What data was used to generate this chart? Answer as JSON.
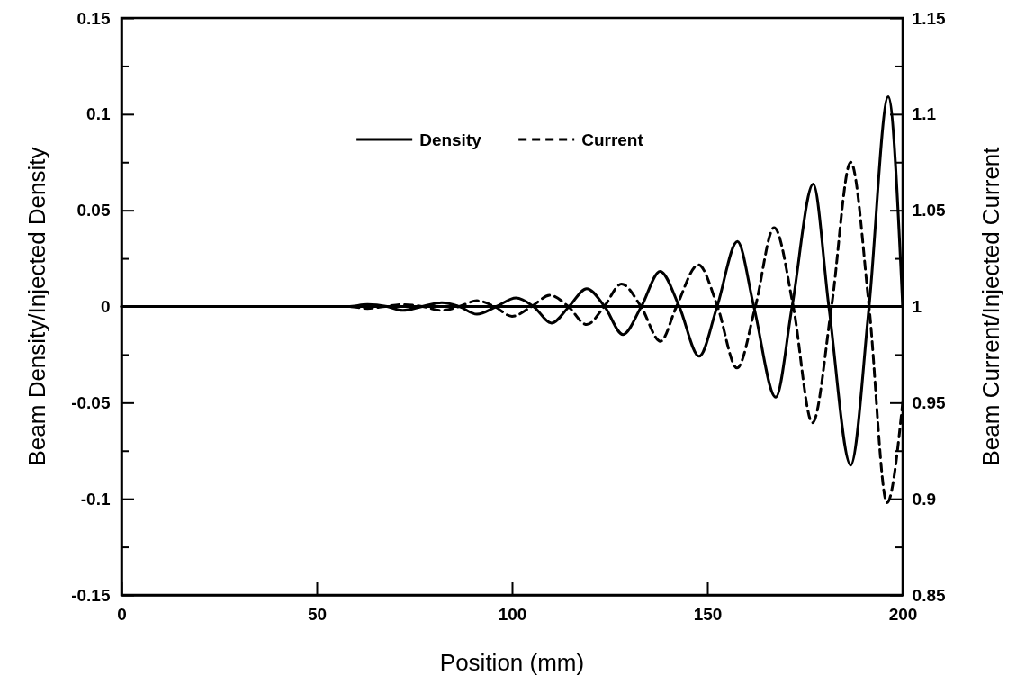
{
  "chart_data": {
    "type": "line",
    "xlabel": "Position (mm)",
    "ylabel": "Beam Density/Injected Density",
    "y2label": "Beam Current/Injected Current",
    "xlim": [
      0,
      200
    ],
    "xticks": [
      0,
      50,
      100,
      150,
      200
    ],
    "ylim": [
      -0.15,
      0.15
    ],
    "yticks": [
      -0.15,
      {
        "value": -0.125,
        "label": null
      },
      -0.1,
      {
        "value": -0.075,
        "label": null
      },
      -0.05,
      {
        "value": -0.025,
        "label": null
      },
      0,
      {
        "value": 0.025,
        "label": null
      },
      0.05,
      {
        "value": 0.075,
        "label": null
      },
      0.1,
      {
        "value": 0.125,
        "label": null
      },
      0.15
    ],
    "y2lim": [
      0.85,
      1.15
    ],
    "y2ticks": [
      0.85,
      {
        "value": 0.875,
        "label": null
      },
      0.9,
      {
        "value": 0.925,
        "label": null
      },
      0.95,
      {
        "value": 0.975,
        "label": null
      },
      1,
      {
        "value": 1.025,
        "label": null
      },
      1.05,
      {
        "value": 1.075,
        "label": null
      },
      1.1,
      {
        "value": 1.125,
        "label": null
      },
      1.15
    ],
    "grid": false,
    "legend": "top",
    "marker": "none",
    "ref_lines": [
      {
        "axis": "y",
        "value": 0,
        "color": "#000000",
        "line_style": "solid"
      }
    ],
    "series": [
      {
        "name": "Density",
        "color": "#000000",
        "line_style": "solid",
        "x": [
          0,
          50,
          58,
          63,
          68,
          72,
          77,
          82,
          86.5,
          91,
          96,
          101,
          105.5,
          110.1,
          114.6,
          119.1,
          123.7,
          128.4,
          133.1,
          137.9,
          142.8,
          147.9,
          152.5,
          157.7,
          161.9,
          167.5,
          171.7,
          177.1,
          181.1,
          186.7,
          191.4,
          196.3,
          200
        ],
        "values": [
          0,
          0,
          0,
          0.001,
          0,
          -0.002,
          0,
          0.002,
          0,
          -0.004,
          0,
          0.0044,
          0,
          -0.0086,
          0,
          0.0093,
          0,
          -0.0146,
          0,
          0.0183,
          0,
          -0.0259,
          0,
          0.0338,
          0,
          -0.0472,
          0,
          0.0636,
          0,
          -0.0825,
          0,
          0.109,
          0
        ]
      },
      {
        "name": "Current",
        "color": "#000000",
        "line_style": "dashed",
        "axis": "y2",
        "x": [
          0,
          50,
          58,
          63,
          67.5,
          72,
          77,
          82,
          86.5,
          91,
          95.5,
          100,
          105,
          109.7,
          114.4,
          119.1,
          123.6,
          128,
          133,
          138,
          142.1,
          147.7,
          152.6,
          157.6,
          162.3,
          167.1,
          172,
          176.9,
          181.8,
          186.7,
          191.4,
          196,
          200
        ],
        "values": [
          1,
          1,
          1,
          0.999,
          1,
          1.001,
          1,
          0.998,
          1,
          1.003,
          1,
          0.9949,
          1,
          1.0058,
          1,
          0.9906,
          1,
          1.0117,
          1,
          0.9819,
          1,
          1.0217,
          1,
          0.968,
          1,
          1.041,
          1,
          0.9395,
          1,
          1.075,
          1,
          0.898,
          0.95
        ]
      }
    ]
  }
}
